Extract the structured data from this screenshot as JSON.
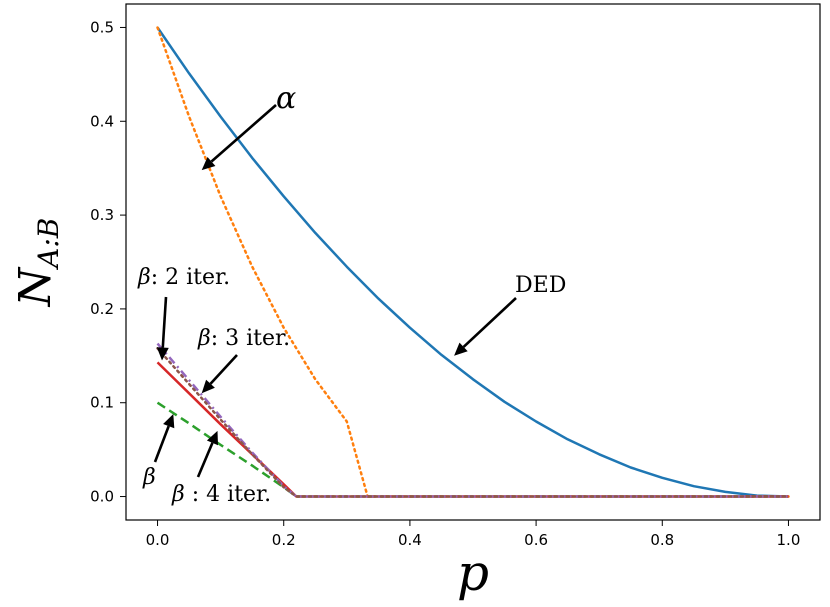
{
  "chart_data": {
    "type": "line",
    "xlabel": "p",
    "ylabel_main": "N",
    "ylabel_sub": "A:B",
    "xlim": [
      -0.05,
      1.05
    ],
    "ylim": [
      -0.025,
      0.525
    ],
    "xticks": [
      0.0,
      0.2,
      0.4,
      0.6,
      0.8,
      1.0
    ],
    "xtick_labels": [
      "0.0",
      "0.2",
      "0.4",
      "0.6",
      "0.8",
      "1.0"
    ],
    "yticks": [
      0.0,
      0.1,
      0.2,
      0.3,
      0.4,
      0.5
    ],
    "ytick_labels": [
      "0.0",
      "0.1",
      "0.2",
      "0.3",
      "0.4",
      "0.5"
    ],
    "grid": false,
    "series": [
      {
        "key": "ded",
        "color": "#1f77b4",
        "style": "solid",
        "x": [
          0.0,
          0.05,
          0.1,
          0.15,
          0.2,
          0.25,
          0.3,
          0.35,
          0.4,
          0.45,
          0.5,
          0.55,
          0.6,
          0.65,
          0.7,
          0.75,
          0.8,
          0.85,
          0.9,
          0.95,
          1.0
        ],
        "y": [
          0.5,
          0.451,
          0.405,
          0.361,
          0.32,
          0.281,
          0.245,
          0.211,
          0.18,
          0.151,
          0.125,
          0.101,
          0.08,
          0.061,
          0.045,
          0.031,
          0.02,
          0.011,
          0.005,
          0.001,
          0.0
        ]
      },
      {
        "key": "alpha",
        "color": "#ff7f0e",
        "style": "dotted",
        "x": [
          0.0,
          0.05,
          0.1,
          0.15,
          0.2,
          0.25,
          0.3,
          0.333,
          0.4,
          0.6,
          0.8,
          1.0
        ],
        "y": [
          0.5,
          0.405,
          0.32,
          0.245,
          0.18,
          0.125,
          0.08,
          0.0,
          0.0,
          0.0,
          0.0,
          0.0
        ]
      },
      {
        "key": "beta",
        "color": "#2ca02c",
        "style": "dashed",
        "x": [
          0.0,
          0.05,
          0.1,
          0.15,
          0.2,
          0.22,
          0.4,
          0.6,
          0.8,
          1.0
        ],
        "y": [
          0.1,
          0.078,
          0.055,
          0.033,
          0.01,
          0.0,
          0.0,
          0.0,
          0.0,
          0.0
        ]
      },
      {
        "key": "beta2",
        "color": "#d62728",
        "style": "solid",
        "x": [
          0.0,
          0.05,
          0.1,
          0.15,
          0.2,
          0.22,
          0.4,
          0.6,
          0.8,
          1.0
        ],
        "y": [
          0.143,
          0.11,
          0.077,
          0.045,
          0.013,
          0.0,
          0.0,
          0.0,
          0.0,
          0.0
        ]
      },
      {
        "key": "beta3",
        "color": "#9467bd",
        "style": "dashdot",
        "x": [
          0.0,
          0.05,
          0.1,
          0.15,
          0.2,
          0.22,
          0.4,
          0.6,
          0.8,
          1.0
        ],
        "y": [
          0.163,
          0.124,
          0.085,
          0.047,
          0.011,
          0.0,
          0.0,
          0.0,
          0.0,
          0.0
        ]
      },
      {
        "key": "beta4",
        "color": "#8c564b",
        "style": "dotted",
        "x": [
          0.0,
          0.05,
          0.1,
          0.15,
          0.2,
          0.22,
          0.4,
          0.6,
          0.8,
          1.0
        ],
        "y": [
          0.158,
          0.12,
          0.082,
          0.045,
          0.01,
          0.0,
          0.0,
          0.0,
          0.0,
          0.0
        ]
      }
    ],
    "annotations": [
      {
        "key": "alpha",
        "text": "α",
        "arrow_to": [
          0.07,
          0.348
        ]
      },
      {
        "key": "ded",
        "text": "DED",
        "arrow_to": [
          0.47,
          0.15
        ]
      },
      {
        "key": "beta2",
        "text_greek": "β",
        "text": ": 2 iter.",
        "arrow_to": [
          0.007,
          0.145
        ]
      },
      {
        "key": "beta3",
        "text_greek": "β",
        "text": ": 3 iter.",
        "arrow_to": [
          0.07,
          0.11
        ]
      },
      {
        "key": "beta",
        "text_greek": "β",
        "text": "",
        "arrow_to": [
          0.025,
          0.088
        ]
      },
      {
        "key": "beta4",
        "text_greek": "β",
        "text": " : 4 iter.",
        "arrow_to": [
          0.095,
          0.07
        ]
      }
    ]
  }
}
